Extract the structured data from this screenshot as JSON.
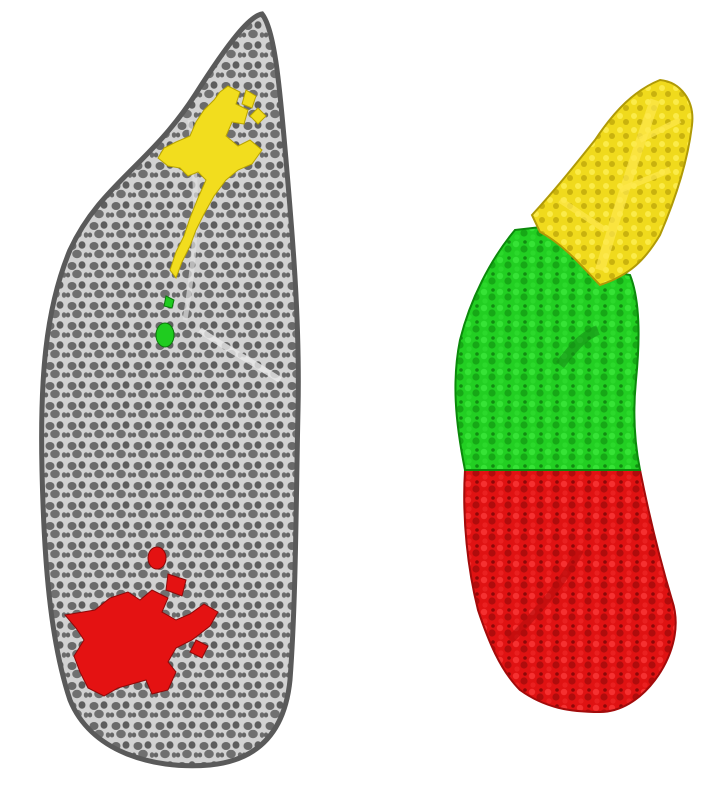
{
  "figure": {
    "panels": [
      {
        "id": "left",
        "kind": "grayscale-section",
        "overlays": [
          "yellow",
          "green",
          "red"
        ]
      },
      {
        "id": "right",
        "kind": "3d-surface-rendering",
        "segments": [
          "yellow",
          "green",
          "red"
        ]
      }
    ],
    "colors": {
      "background": "#ffffff",
      "tissue_gray": "#8e8e8e",
      "tissue_light": "#d4d4d4",
      "airspace_dark": "#555555",
      "yellow": "#f2dd1e",
      "green": "#1fcc1f",
      "red": "#e01010"
    }
  }
}
